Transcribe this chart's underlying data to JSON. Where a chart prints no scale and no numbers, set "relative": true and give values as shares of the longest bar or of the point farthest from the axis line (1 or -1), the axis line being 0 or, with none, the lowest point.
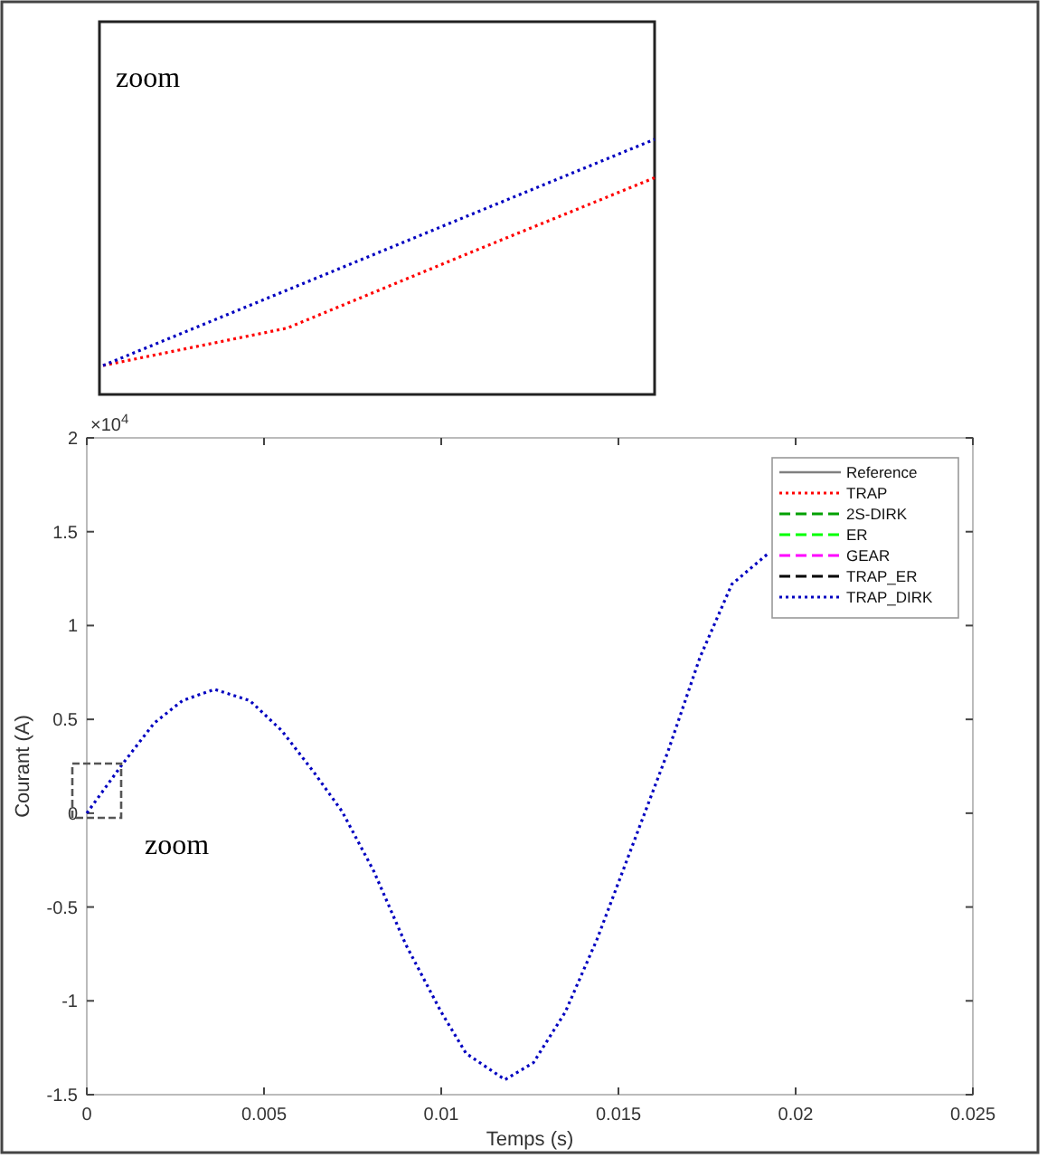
{
  "chart_data": [
    {
      "type": "line",
      "relative": true,
      "grid": false,
      "legend": false,
      "annotations": [
        "zoom"
      ],
      "categories": [
        null,
        null,
        null,
        null
      ],
      "series": [
        {
          "color": "#ff0000",
          "line_style": "dotted",
          "values": [
            0,
            0.165,
            0.5,
            0.83
          ]
        },
        {
          "color": "#0000c0",
          "line_style": "dotted",
          "values": [
            0,
            0.333,
            0.667,
            1
          ]
        }
      ]
    },
    {
      "type": "line",
      "xlabel": "Temps (s)",
      "ylabel": "Courant (A)",
      "xlim": [
        0,
        0.025
      ],
      "ylim": [
        -1.5,
        2
      ],
      "xticks": [
        0,
        0.005,
        0.01,
        0.015,
        0.02,
        0.025
      ],
      "yticks": [
        -1.5,
        -1,
        -0.5,
        0,
        0.5,
        1,
        1.5,
        2
      ],
      "grid": false,
      "legend": "top right",
      "annotations": [
        "×10$^{4}$",
        "zoom"
      ],
      "x": [
        0,
        0.001,
        0.0019,
        0.0027,
        0.0036,
        0.0046,
        0.0055,
        0.0064,
        0.0072,
        0.0081,
        0.009,
        0.01,
        0.0107,
        0.0118,
        0.0126,
        0.0135,
        0.0144,
        0.0154,
        0.0164,
        0.0173,
        0.0182,
        0.0192
      ],
      "series": [
        {
          "name": "Reference",
          "color": "#808080",
          "line_style": "solid",
          "values": [
            null,
            null,
            null,
            null,
            null,
            null,
            null,
            null,
            null,
            null,
            null,
            null,
            null,
            null,
            null,
            null,
            null,
            null,
            null,
            null,
            null,
            null
          ]
        },
        {
          "name": "TRAP",
          "color": "#ff0000",
          "line_style": "dotted",
          "values": [
            null,
            null,
            null,
            null,
            null,
            null,
            null,
            null,
            null,
            null,
            null,
            null,
            null,
            null,
            null,
            null,
            null,
            null,
            null,
            null,
            null,
            null
          ]
        },
        {
          "name": "2S-DIRK",
          "color": "#00a000",
          "line_style": "dashed",
          "values": [
            null,
            null,
            null,
            null,
            null,
            null,
            null,
            null,
            null,
            null,
            null,
            null,
            null,
            null,
            null,
            null,
            null,
            null,
            null,
            null,
            null,
            null
          ]
        },
        {
          "name": "ER",
          "color": "#00ff00",
          "line_style": "dashed",
          "values": [
            null,
            null,
            null,
            null,
            null,
            null,
            null,
            null,
            null,
            null,
            null,
            null,
            null,
            null,
            null,
            null,
            null,
            null,
            null,
            null,
            null,
            null
          ]
        },
        {
          "name": "GEAR",
          "color": "#ff00ff",
          "line_style": "dashed",
          "values": [
            null,
            null,
            null,
            null,
            null,
            null,
            null,
            null,
            null,
            null,
            null,
            null,
            null,
            null,
            null,
            null,
            null,
            null,
            null,
            null,
            null,
            null
          ]
        },
        {
          "name": "TRAP_ER",
          "color": "#000000",
          "line_style": "dashed",
          "values": [
            null,
            null,
            null,
            null,
            null,
            null,
            null,
            null,
            null,
            null,
            null,
            null,
            null,
            null,
            null,
            null,
            null,
            null,
            null,
            null,
            null,
            null
          ]
        },
        {
          "name": "TRAP_DIRK",
          "color": "#0000c0",
          "line_style": "dotted",
          "values": [
            0,
            0.26,
            0.48,
            0.6,
            0.66,
            0.6,
            0.44,
            0.22,
            0.01,
            -0.31,
            -0.7,
            -1.06,
            -1.28,
            -1.42,
            -1.33,
            -1.06,
            -0.67,
            -0.17,
            0.33,
            0.83,
            1.22,
            1.38
          ]
        }
      ]
    }
  ]
}
